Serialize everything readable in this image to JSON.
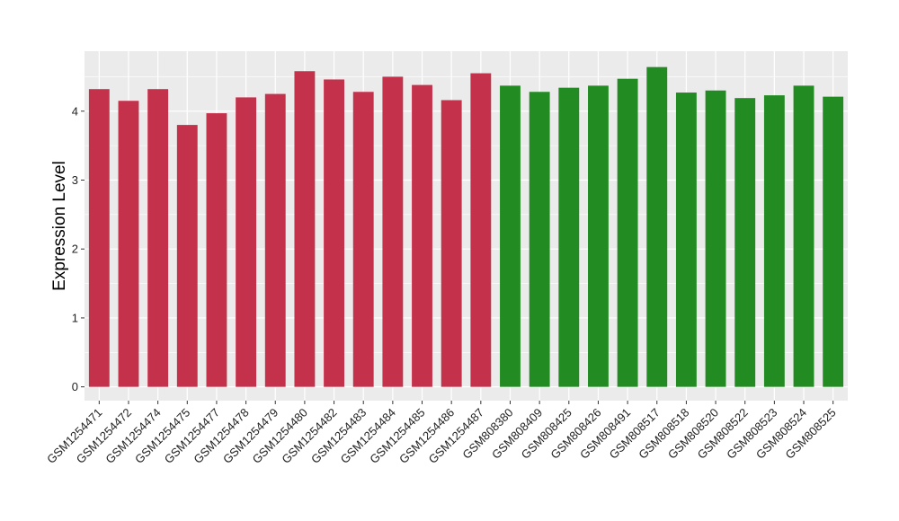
{
  "chart_data": {
    "type": "bar",
    "title": "",
    "xlabel": "",
    "ylabel": "Expression Level",
    "ylim": [
      -0.2,
      4.87
    ],
    "yticks": [
      0,
      1,
      2,
      3,
      4
    ],
    "grid": true,
    "legend": "none",
    "colors": {
      "panel_bg": "#ebebeb",
      "grid_major": "#ffffff",
      "group1": "#c4314b",
      "group2": "#228b22"
    },
    "categories": [
      "GSM1254471",
      "GSM1254472",
      "GSM1254474",
      "GSM1254475",
      "GSM1254477",
      "GSM1254478",
      "GSM1254479",
      "GSM1254480",
      "GSM1254482",
      "GSM1254483",
      "GSM1254484",
      "GSM1254485",
      "GSM1254486",
      "GSM1254487",
      "GSM808380",
      "GSM808409",
      "GSM808425",
      "GSM808426",
      "GSM808491",
      "GSM808517",
      "GSM808518",
      "GSM808520",
      "GSM808522",
      "GSM808523",
      "GSM808524",
      "GSM808525"
    ],
    "values": [
      4.32,
      4.15,
      4.32,
      3.8,
      3.97,
      4.2,
      4.25,
      4.58,
      4.46,
      4.28,
      4.5,
      4.38,
      4.16,
      4.55,
      4.37,
      4.28,
      4.34,
      4.37,
      4.47,
      4.64,
      4.27,
      4.3,
      4.19,
      4.23,
      4.37,
      4.21
    ],
    "groups": [
      0,
      0,
      0,
      0,
      0,
      0,
      0,
      0,
      0,
      0,
      0,
      0,
      0,
      0,
      1,
      1,
      1,
      1,
      1,
      1,
      1,
      1,
      1,
      1,
      1,
      1
    ]
  }
}
